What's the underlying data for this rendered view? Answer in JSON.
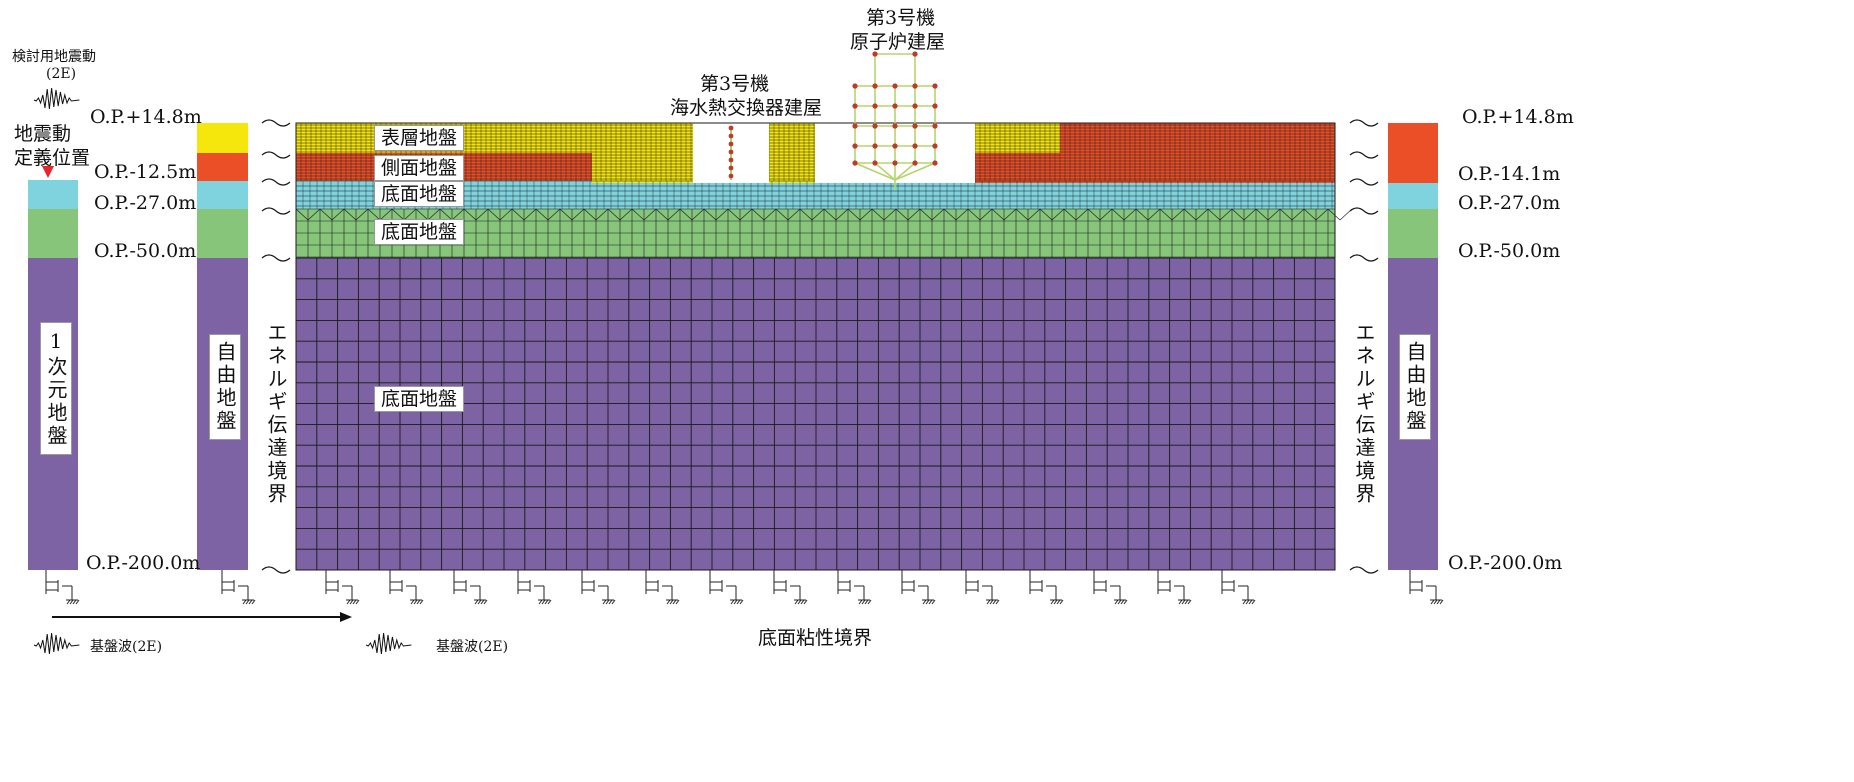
{
  "colors": {
    "surface": "#f5e60c",
    "side": "#ea4f28",
    "bottom_top": "#7fd3df",
    "bottom_mid": "#86c57a",
    "bottom_deep": "#7d63a3",
    "mesh_line": "#1a1a1a",
    "model_green": "#b5d56b",
    "input_marker": "#e8252a"
  },
  "input_motion": {
    "title": "検討用地震動",
    "sub": "(2E)",
    "definition_label_line1": "地震動",
    "definition_label_line2": "定義位置"
  },
  "buildings": {
    "seawater": {
      "line1": "第3号機",
      "line2": "海水熱交換器建屋"
    },
    "reactor": {
      "line1": "第3号機",
      "line2": "原子炉建屋"
    }
  },
  "left_levels": [
    "O.P.+14.8m",
    "O.P.-12.5m",
    "O.P.-27.0m",
    "O.P.-50.0m",
    "O.P.-200.0m"
  ],
  "right_levels": [
    "O.P.+14.8m",
    "O.P.-14.1m",
    "O.P.-27.0m",
    "O.P.-50.0m",
    "O.P.-200.0m"
  ],
  "layer_labels": {
    "surface": "表層地盤",
    "side": "側面地盤",
    "bottom1": "底面地盤",
    "bottom2": "底面地盤",
    "bottom3": "底面地盤"
  },
  "columns": {
    "one_d": "1次元地盤",
    "free_left": "自由地盤",
    "free_right": "自由地盤"
  },
  "boundaries": {
    "energy_left": "エネルギ伝達境界",
    "energy_right": "エネルギ伝達境界",
    "bottom_viscous": "底面粘性境界"
  },
  "base_wave": {
    "left": "基盤波(2E)",
    "right": "基盤波(2E)"
  }
}
